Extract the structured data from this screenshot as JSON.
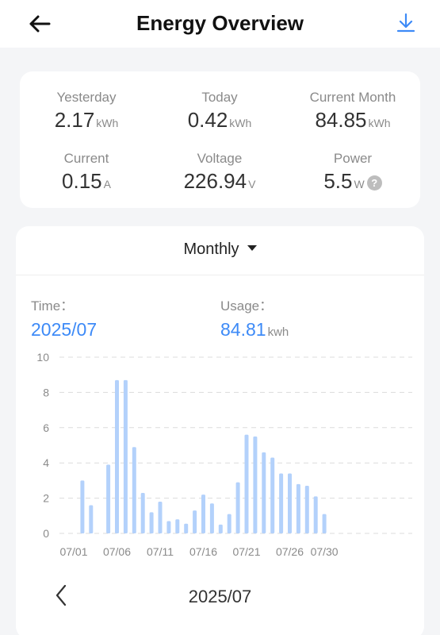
{
  "header": {
    "title": "Energy Overview",
    "back_icon": "arrow-left-icon",
    "download_icon": "download-icon",
    "accent_color": "#3d8af7"
  },
  "stats": [
    {
      "label": "Yesterday",
      "value": "2.17",
      "unit": "kWh"
    },
    {
      "label": "Today",
      "value": "0.42",
      "unit": "kWh"
    },
    {
      "label": "Current Month",
      "value": "84.85",
      "unit": "kWh"
    },
    {
      "label": "Current",
      "value": "0.15",
      "unit": "A"
    },
    {
      "label": "Voltage",
      "value": "226.94",
      "unit": "V"
    },
    {
      "label": "Power",
      "value": "5.5",
      "unit": "W",
      "help_icon": "question-circle-icon",
      "help_text": "?"
    }
  ],
  "chart_section": {
    "period": "Monthly",
    "time_label": "Time：",
    "time_value": "2025/07",
    "usage_label": "Usage：",
    "usage_value": "84.81",
    "usage_unit": "kwh",
    "nav_date": "2025/07",
    "prev_icon": "chevron-left-icon"
  },
  "chart_data": {
    "type": "bar",
    "bar_color": "#b3d1fb",
    "ylim": [
      0,
      10
    ],
    "y_ticks": [
      0,
      2,
      4,
      6,
      8,
      10
    ],
    "x_tick_labels": [
      "07/01",
      "07/06",
      "07/11",
      "07/16",
      "07/21",
      "07/26",
      "07/30"
    ],
    "x_tick_days": [
      1,
      6,
      11,
      16,
      21,
      26,
      30
    ],
    "categories": [
      "07/01",
      "07/02",
      "07/03",
      "07/04",
      "07/05",
      "07/06",
      "07/07",
      "07/08",
      "07/09",
      "07/10",
      "07/11",
      "07/12",
      "07/13",
      "07/14",
      "07/15",
      "07/16",
      "07/17",
      "07/18",
      "07/19",
      "07/20",
      "07/21",
      "07/22",
      "07/23",
      "07/24",
      "07/25",
      "07/26",
      "07/27",
      "07/28",
      "07/29",
      "07/30",
      "07/31"
    ],
    "values": [
      0,
      3.0,
      1.6,
      0,
      3.9,
      8.7,
      8.7,
      4.9,
      2.3,
      1.2,
      1.8,
      0.7,
      0.8,
      0.55,
      1.3,
      2.2,
      1.7,
      0.5,
      1.1,
      2.9,
      5.6,
      5.5,
      4.6,
      4.3,
      3.4,
      3.4,
      2.8,
      2.7,
      2.1,
      1.1,
      0
    ]
  }
}
